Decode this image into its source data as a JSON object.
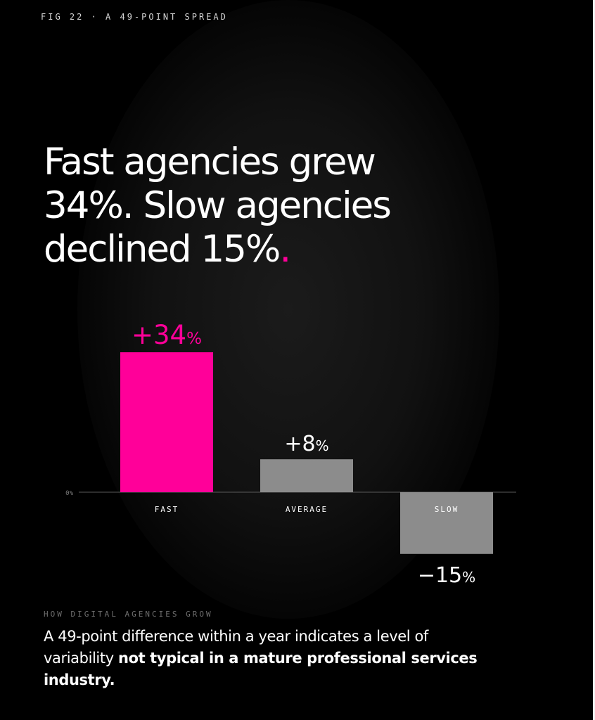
{
  "figure_label": "FIG 22 · A 49-POINT SPREAD",
  "headline": {
    "line1": "Fast agencies grew",
    "line2": "34%. Slow agencies",
    "line3": "declined 15%",
    "dot": "."
  },
  "section_label": "HOW DIGITAL AGENCIES GROW",
  "caption": {
    "plain": "A 49-point difference within a year indicates a level of variability ",
    "bold": "not typical in a mature professional services industry."
  },
  "colors": {
    "background": "#000000",
    "accent": "#ff0099",
    "neutral_bar": "#8c8c8c",
    "text": "#ffffff"
  },
  "chart_data": {
    "type": "bar",
    "categories": [
      "FAST",
      "AVERAGE",
      "SLOW"
    ],
    "values": [
      34,
      8,
      -15
    ],
    "data_labels": [
      {
        "sign_number": "+34",
        "unit": "%"
      },
      {
        "sign_number": "+8",
        "unit": "%"
      },
      {
        "sign_number": "−15",
        "unit": "%"
      }
    ],
    "bar_colors": [
      "#ff0099",
      "#8c8c8c",
      "#8c8c8c"
    ],
    "baseline_label": "0%",
    "ylim": [
      -15,
      34
    ],
    "grid": false,
    "legend": "none"
  }
}
